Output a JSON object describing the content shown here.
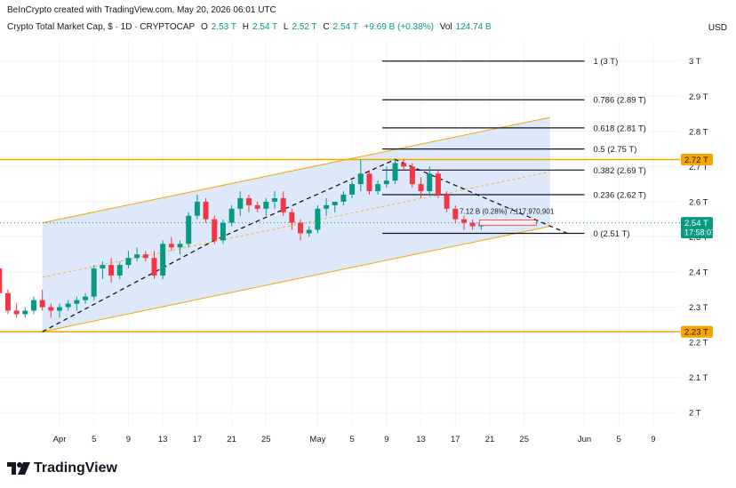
{
  "header": {
    "credit": "BeInCrypto created with TradingView.com, May 20, 2026 06:01 UTC"
  },
  "symbol": {
    "name": "Crypto Total Market Cap, $ · 1D · CRYPTOCAP",
    "open_label": "O",
    "open": "2.53 T",
    "high_label": "H",
    "high": "2.54 T",
    "low_label": "L",
    "low": "2.52 T",
    "close_label": "C",
    "close": "2.54 T",
    "change": "+9.69 B (+0.38%)",
    "vol_label": "Vol",
    "vol": "124.74 B"
  },
  "currency": "USD",
  "logo": {
    "text": "TradingView"
  },
  "colors": {
    "up": "#089981",
    "down": "#f23645",
    "orange": "#f7a600",
    "channel_fill": "#dbe8fb",
    "fib_line": "#131722"
  },
  "chart_data": {
    "type": "candlestick",
    "y_axis": {
      "ticks": [
        "3 T",
        "2.9 T",
        "2.8 T",
        "2.7 T",
        "2.6 T",
        "2.5 T",
        "2.4 T",
        "2.3 T",
        "2.2 T",
        "2.1 T",
        "2 T"
      ],
      "values": [
        3.0,
        2.9,
        2.8,
        2.7,
        2.6,
        2.5,
        2.4,
        2.3,
        2.2,
        2.1,
        2.0
      ],
      "ylim": [
        1.96,
        3.06
      ]
    },
    "x_axis": {
      "ticks": [
        "Apr",
        "5",
        "9",
        "13",
        "17",
        "21",
        "25",
        "May",
        "5",
        "9",
        "13",
        "17",
        "21",
        "25",
        "Jun",
        "5",
        "9"
      ],
      "tick_days": [
        0,
        4,
        8,
        12,
        16,
        20,
        24,
        30,
        34,
        38,
        42,
        46,
        50,
        54,
        61,
        65,
        69
      ]
    },
    "price_tags": [
      {
        "label": "2.72 T",
        "value": 2.72,
        "style": "orange"
      },
      {
        "label": "2.54 T",
        "value": 2.54,
        "style": "green",
        "countdown": "17:58:07"
      },
      {
        "label": "2.23 T",
        "value": 2.23,
        "style": "orange"
      }
    ],
    "fib_levels": [
      {
        "label": "1 (3 T)",
        "value": 3.0
      },
      {
        "label": "0.786 (2.89 T)",
        "value": 2.89
      },
      {
        "label": "0.618 (2.81 T)",
        "value": 2.81
      },
      {
        "label": "0.5 (2.75 T)",
        "value": 2.75
      },
      {
        "label": "0.382 (2.69 T)",
        "value": 2.69
      },
      {
        "label": "0.236 (2.62 T)",
        "value": 2.62
      },
      {
        "label": "0 (2.51 T)",
        "value": 2.51
      }
    ],
    "horizontal_levels": [
      2.72,
      2.23
    ],
    "annotation": "7.12 B (0.28%) 7,117,970,901",
    "candles": [
      {
        "d": -7,
        "o": 2.41,
        "h": 2.42,
        "l": 2.33,
        "c": 2.34
      },
      {
        "d": -6,
        "o": 2.34,
        "h": 2.35,
        "l": 2.28,
        "c": 2.29
      },
      {
        "d": -5,
        "o": 2.29,
        "h": 2.31,
        "l": 2.27,
        "c": 2.28
      },
      {
        "d": -4,
        "o": 2.28,
        "h": 2.3,
        "l": 2.27,
        "c": 2.29
      },
      {
        "d": -3,
        "o": 2.29,
        "h": 2.33,
        "l": 2.28,
        "c": 2.32
      },
      {
        "d": -2,
        "o": 2.32,
        "h": 2.35,
        "l": 2.29,
        "c": 2.3
      },
      {
        "d": -1,
        "o": 2.3,
        "h": 2.31,
        "l": 2.27,
        "c": 2.29
      },
      {
        "d": 0,
        "o": 2.29,
        "h": 2.31,
        "l": 2.27,
        "c": 2.3
      },
      {
        "d": 1,
        "o": 2.3,
        "h": 2.32,
        "l": 2.29,
        "c": 2.31
      },
      {
        "d": 2,
        "o": 2.31,
        "h": 2.33,
        "l": 2.29,
        "c": 2.32
      },
      {
        "d": 3,
        "o": 2.32,
        "h": 2.34,
        "l": 2.31,
        "c": 2.33
      },
      {
        "d": 4,
        "o": 2.33,
        "h": 2.42,
        "l": 2.32,
        "c": 2.41
      },
      {
        "d": 5,
        "o": 2.41,
        "h": 2.43,
        "l": 2.38,
        "c": 2.42
      },
      {
        "d": 6,
        "o": 2.42,
        "h": 2.44,
        "l": 2.37,
        "c": 2.39
      },
      {
        "d": 7,
        "o": 2.39,
        "h": 2.43,
        "l": 2.38,
        "c": 2.42
      },
      {
        "d": 8,
        "o": 2.42,
        "h": 2.46,
        "l": 2.41,
        "c": 2.44
      },
      {
        "d": 9,
        "o": 2.44,
        "h": 2.47,
        "l": 2.43,
        "c": 2.45
      },
      {
        "d": 10,
        "o": 2.45,
        "h": 2.46,
        "l": 2.43,
        "c": 2.44
      },
      {
        "d": 11,
        "o": 2.44,
        "h": 2.46,
        "l": 2.38,
        "c": 2.39
      },
      {
        "d": 12,
        "o": 2.39,
        "h": 2.49,
        "l": 2.38,
        "c": 2.48
      },
      {
        "d": 13,
        "o": 2.48,
        "h": 2.5,
        "l": 2.46,
        "c": 2.47
      },
      {
        "d": 14,
        "o": 2.47,
        "h": 2.49,
        "l": 2.45,
        "c": 2.48
      },
      {
        "d": 15,
        "o": 2.48,
        "h": 2.57,
        "l": 2.47,
        "c": 2.56
      },
      {
        "d": 16,
        "o": 2.56,
        "h": 2.62,
        "l": 2.55,
        "c": 2.6
      },
      {
        "d": 17,
        "o": 2.6,
        "h": 2.61,
        "l": 2.54,
        "c": 2.55
      },
      {
        "d": 18,
        "o": 2.55,
        "h": 2.56,
        "l": 2.48,
        "c": 2.49
      },
      {
        "d": 19,
        "o": 2.49,
        "h": 2.55,
        "l": 2.48,
        "c": 2.54
      },
      {
        "d": 20,
        "o": 2.54,
        "h": 2.59,
        "l": 2.53,
        "c": 2.58
      },
      {
        "d": 21,
        "o": 2.58,
        "h": 2.63,
        "l": 2.56,
        "c": 2.61
      },
      {
        "d": 22,
        "o": 2.61,
        "h": 2.62,
        "l": 2.57,
        "c": 2.59
      },
      {
        "d": 23,
        "o": 2.59,
        "h": 2.6,
        "l": 2.57,
        "c": 2.58
      },
      {
        "d": 24,
        "o": 2.58,
        "h": 2.61,
        "l": 2.56,
        "c": 2.6
      },
      {
        "d": 25,
        "o": 2.6,
        "h": 2.63,
        "l": 2.58,
        "c": 2.61
      },
      {
        "d": 26,
        "o": 2.61,
        "h": 2.63,
        "l": 2.56,
        "c": 2.57
      },
      {
        "d": 27,
        "o": 2.57,
        "h": 2.58,
        "l": 2.52,
        "c": 2.54
      },
      {
        "d": 28,
        "o": 2.54,
        "h": 2.55,
        "l": 2.49,
        "c": 2.51
      },
      {
        "d": 29,
        "o": 2.51,
        "h": 2.53,
        "l": 2.5,
        "c": 2.52
      },
      {
        "d": 30,
        "o": 2.52,
        "h": 2.59,
        "l": 2.51,
        "c": 2.58
      },
      {
        "d": 31,
        "o": 2.58,
        "h": 2.61,
        "l": 2.56,
        "c": 2.59
      },
      {
        "d": 32,
        "o": 2.59,
        "h": 2.6,
        "l": 2.57,
        "c": 2.6
      },
      {
        "d": 33,
        "o": 2.6,
        "h": 2.63,
        "l": 2.59,
        "c": 2.62
      },
      {
        "d": 34,
        "o": 2.62,
        "h": 2.66,
        "l": 2.61,
        "c": 2.65
      },
      {
        "d": 35,
        "o": 2.65,
        "h": 2.72,
        "l": 2.63,
        "c": 2.68
      },
      {
        "d": 36,
        "o": 2.68,
        "h": 2.69,
        "l": 2.62,
        "c": 2.63
      },
      {
        "d": 37,
        "o": 2.63,
        "h": 2.66,
        "l": 2.62,
        "c": 2.65
      },
      {
        "d": 38,
        "o": 2.65,
        "h": 2.7,
        "l": 2.64,
        "c": 2.66
      },
      {
        "d": 39,
        "o": 2.66,
        "h": 2.72,
        "l": 2.65,
        "c": 2.71
      },
      {
        "d": 40,
        "o": 2.71,
        "h": 2.72,
        "l": 2.69,
        "c": 2.7
      },
      {
        "d": 41,
        "o": 2.7,
        "h": 2.71,
        "l": 2.64,
        "c": 2.65
      },
      {
        "d": 42,
        "o": 2.65,
        "h": 2.67,
        "l": 2.61,
        "c": 2.63
      },
      {
        "d": 43,
        "o": 2.63,
        "h": 2.7,
        "l": 2.62,
        "c": 2.68
      },
      {
        "d": 44,
        "o": 2.68,
        "h": 2.69,
        "l": 2.61,
        "c": 2.62
      },
      {
        "d": 45,
        "o": 2.62,
        "h": 2.63,
        "l": 2.57,
        "c": 2.58
      },
      {
        "d": 46,
        "o": 2.58,
        "h": 2.59,
        "l": 2.54,
        "c": 2.55
      },
      {
        "d": 47,
        "o": 2.55,
        "h": 2.56,
        "l": 2.52,
        "c": 2.54
      },
      {
        "d": 48,
        "o": 2.54,
        "h": 2.55,
        "l": 2.52,
        "c": 2.53
      },
      {
        "d": 49,
        "o": 2.53,
        "h": 2.54,
        "l": 2.52,
        "c": 2.54
      }
    ],
    "channel": {
      "upper": [
        {
          "d": -2,
          "v": 2.54
        },
        {
          "d": 57,
          "v": 2.84
        }
      ],
      "lower": [
        {
          "d": -2,
          "v": 2.23
        },
        {
          "d": 57,
          "v": 2.53
        }
      ],
      "fill_from_day": -2,
      "fill_to_day": 57
    },
    "zigzag": [
      {
        "d": -2,
        "v": 2.23
      },
      {
        "d": 18,
        "v": 2.49
      },
      {
        "d": 39,
        "v": 2.72
      },
      {
        "d": 59,
        "v": 2.51
      }
    ]
  }
}
